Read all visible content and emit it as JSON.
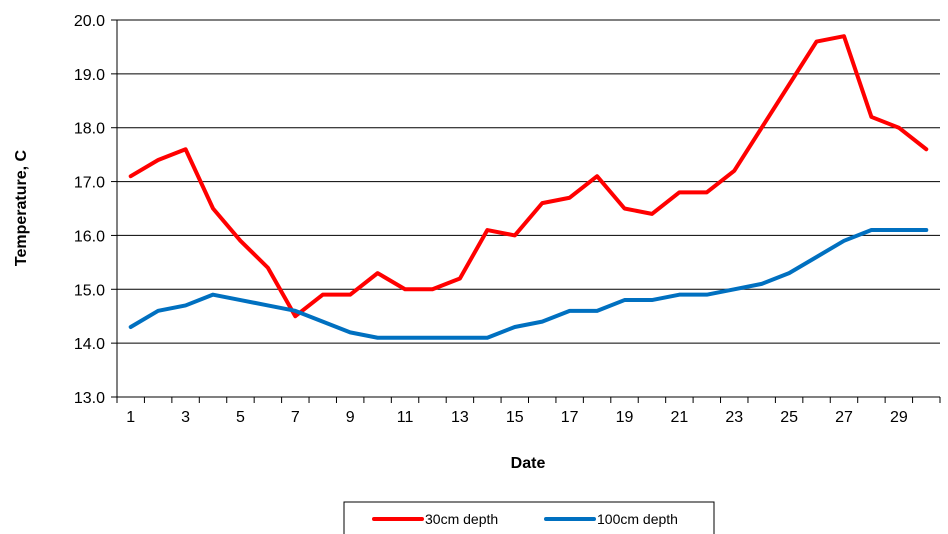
{
  "chart_data": {
    "type": "line",
    "title": "",
    "xlabel": "Date",
    "ylabel": "Temperature, C",
    "x": [
      1,
      2,
      3,
      4,
      5,
      6,
      7,
      8,
      9,
      10,
      11,
      12,
      13,
      14,
      15,
      16,
      17,
      18,
      19,
      20,
      21,
      22,
      23,
      24,
      25,
      26,
      27,
      28,
      29,
      30
    ],
    "x_tick_labels": [
      "1",
      "3",
      "5",
      "7",
      "9",
      "11",
      "13",
      "15",
      "17",
      "19",
      "21",
      "23",
      "25",
      "27",
      "29"
    ],
    "y_tick_labels": [
      "13.0",
      "14.0",
      "15.0",
      "16.0",
      "17.0",
      "18.0",
      "19.0",
      "20.0"
    ],
    "ylim": [
      13.0,
      20.0
    ],
    "grid": "horizontal",
    "legend_position": "bottom",
    "series": [
      {
        "name": "30cm depth",
        "color": "#ff0000",
        "values": [
          17.1,
          17.4,
          17.6,
          16.5,
          15.9,
          15.4,
          14.5,
          14.9,
          14.9,
          15.3,
          15.0,
          15.0,
          15.2,
          16.1,
          16.0,
          16.6,
          16.7,
          17.1,
          16.5,
          16.4,
          16.8,
          16.8,
          17.2,
          18.0,
          18.8,
          19.6,
          19.7,
          18.2,
          18.0,
          17.6
        ]
      },
      {
        "name": "100cm depth",
        "color": "#0070c0",
        "values": [
          14.3,
          14.6,
          14.7,
          14.9,
          14.8,
          14.7,
          14.6,
          14.4,
          14.2,
          14.1,
          14.1,
          14.1,
          14.1,
          14.1,
          14.3,
          14.4,
          14.6,
          14.6,
          14.8,
          14.8,
          14.9,
          14.9,
          15.0,
          15.1,
          15.3,
          15.6,
          15.9,
          16.1,
          16.1,
          16.1
        ]
      }
    ]
  }
}
